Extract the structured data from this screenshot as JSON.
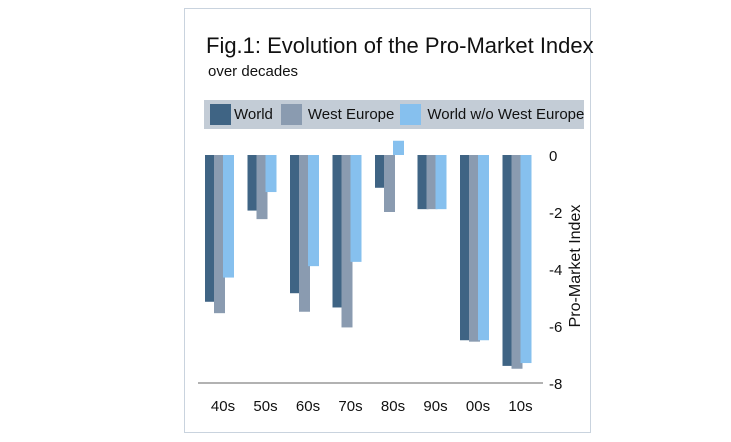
{
  "chart_data": {
    "type": "bar",
    "title": "Fig.1: Evolution of the Pro-Market Index",
    "subtitle": "over decades",
    "xlabel": "",
    "ylabel": "Pro-Market Index",
    "ylim": [
      -8,
      0
    ],
    "yticks": [
      0,
      -2,
      -4,
      -6,
      -8
    ],
    "ytick_labels": [
      "0",
      "-2",
      "-4",
      "-6",
      "-8"
    ],
    "y_axis_side": "right",
    "grid": false,
    "legend_position": "top",
    "categories": [
      "40s",
      "50s",
      "60s",
      "70s",
      "80s",
      "90s",
      "00s",
      "10s"
    ],
    "series": [
      {
        "name": "World",
        "color": "#3f6484",
        "values": [
          -5.15,
          -1.95,
          -4.85,
          -5.35,
          -1.15,
          -1.9,
          -6.5,
          -7.4
        ]
      },
      {
        "name": "West Europe",
        "color": "#8a9bb0",
        "values": [
          -5.55,
          -2.25,
          -5.5,
          -6.05,
          -2.0,
          -1.9,
          -6.55,
          -7.5
        ]
      },
      {
        "name": "World w/o West Europe",
        "color": "#86c0ee",
        "values": [
          -4.3,
          -1.3,
          -3.9,
          -3.75,
          0.5,
          -1.9,
          -6.5,
          -7.3
        ]
      }
    ]
  }
}
